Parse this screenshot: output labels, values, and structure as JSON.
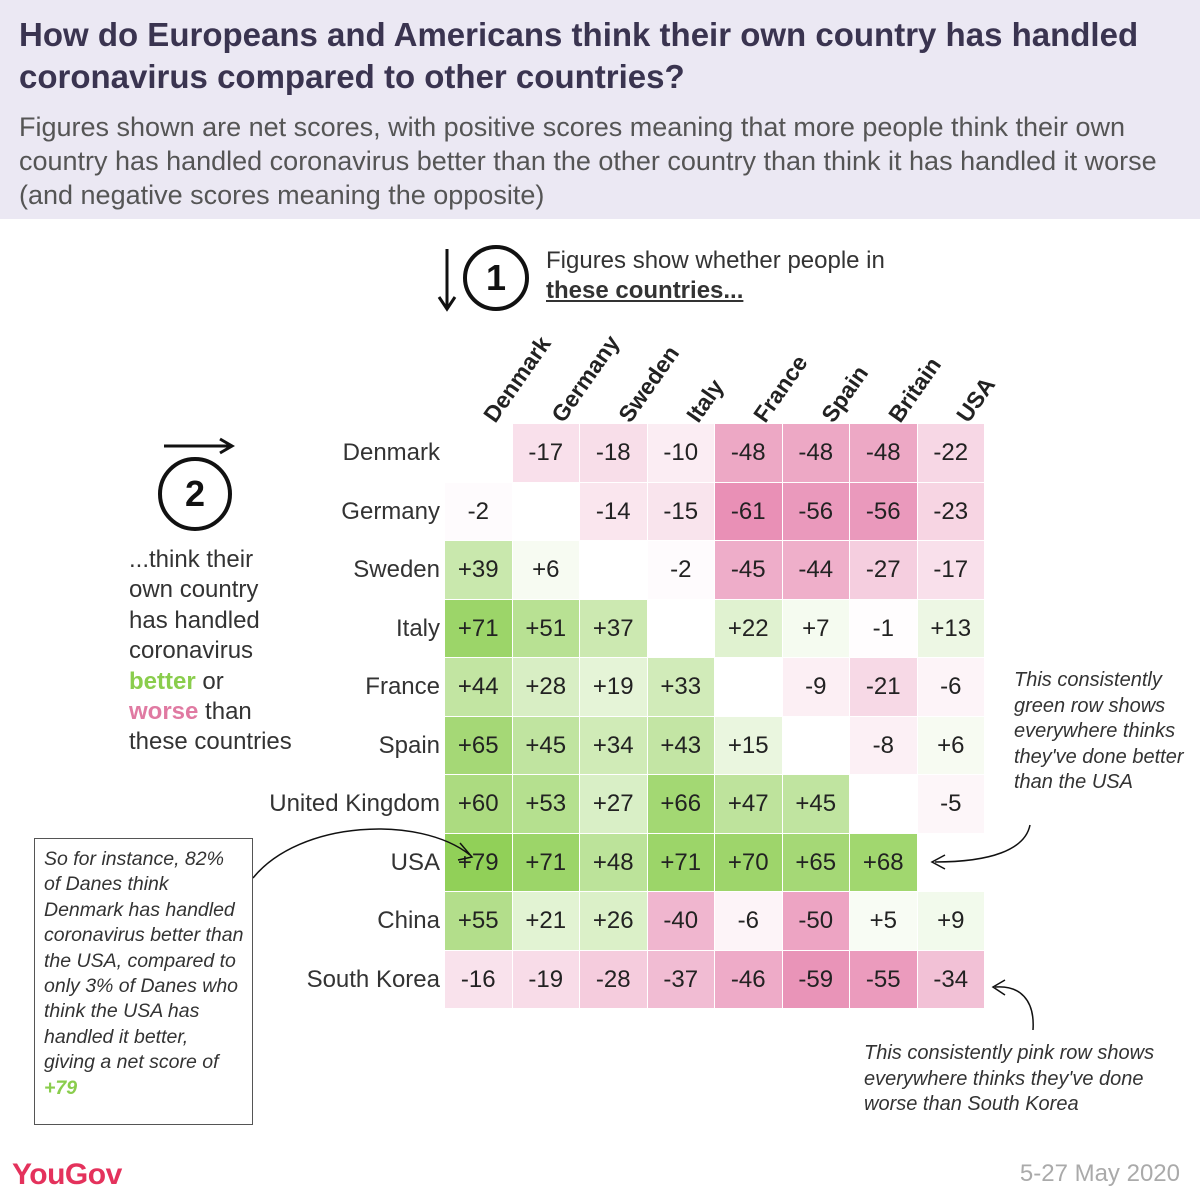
{
  "header": {
    "title": "How do Europeans and Americans think their own country has handled coronavirus compared to other countries?",
    "subtitle": "Figures shown are net scores, with positive scores meaning that more people think their own country has handled coronavirus better than the other country than think it has handled it worse (and negative scores meaning the opposite)"
  },
  "instructions": {
    "step1_number": "1",
    "step1_text": "Figures show whether people in",
    "step1_emphasis": "these countries...",
    "step2_number": "2",
    "step2_line1": "...think their own country has handled coronavirus",
    "step2_better": "better",
    "step2_or": "or",
    "step2_worse": "worse",
    "step2_tail": "than these countries"
  },
  "chart_data": {
    "type": "heatmap",
    "columns": [
      "Denmark",
      "Germany",
      "Sweden",
      "Italy",
      "France",
      "Spain",
      "Britain",
      "USA"
    ],
    "rows": [
      "Denmark",
      "Germany",
      "Sweden",
      "Italy",
      "France",
      "Spain",
      "United Kingdom",
      "USA",
      "China",
      "South Korea"
    ],
    "values": [
      [
        null,
        -17,
        -18,
        -10,
        -48,
        -48,
        -48,
        -22
      ],
      [
        -2,
        null,
        -14,
        -15,
        -61,
        -56,
        -56,
        -23
      ],
      [
        39,
        6,
        null,
        -2,
        -45,
        -44,
        -27,
        -17
      ],
      [
        71,
        51,
        37,
        null,
        22,
        7,
        -1,
        13
      ],
      [
        44,
        28,
        19,
        33,
        null,
        -9,
        -21,
        -6
      ],
      [
        65,
        45,
        34,
        43,
        15,
        null,
        -8,
        6
      ],
      [
        60,
        53,
        27,
        66,
        47,
        45,
        null,
        -5
      ],
      [
        79,
        71,
        48,
        71,
        70,
        65,
        68,
        null
      ],
      [
        55,
        21,
        26,
        -40,
        -6,
        -50,
        5,
        9
      ],
      [
        -16,
        -19,
        -28,
        -37,
        -46,
        -59,
        -55,
        -34
      ]
    ],
    "positive_color": "#8acd4d",
    "negative_color": "#e0669a"
  },
  "notes": {
    "example": "So for instance, 82% of Danes think Denmark has handled coronavirus better than the USA, compared to only 3% of Danes who think the USA has handled it better, giving a net score of",
    "example_value": "+79",
    "green_row": "This consistently green row shows everywhere thinks they've done better than the USA",
    "pink_row": "This consistently pink row shows everywhere thinks they've done worse than South Korea"
  },
  "footer": {
    "brand": "YouGov",
    "date": "5-27 May 2020"
  }
}
